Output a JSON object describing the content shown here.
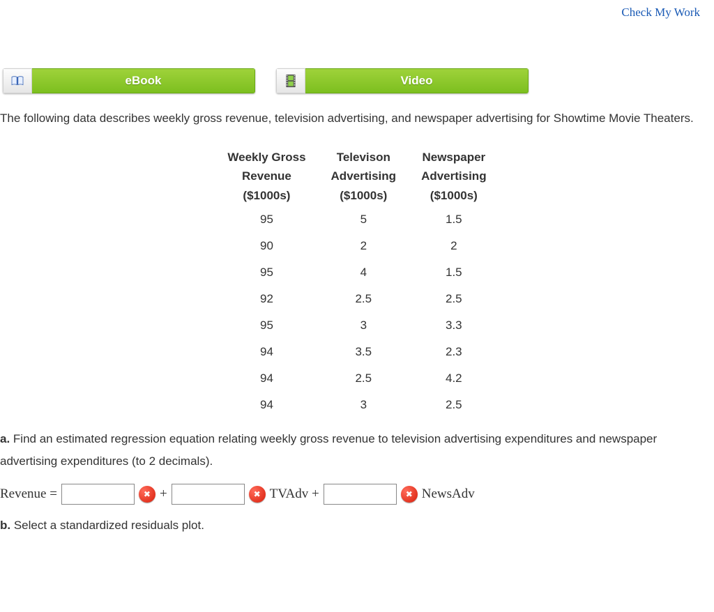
{
  "header": {
    "check_link": "Check My Work"
  },
  "tabs": {
    "ebook_label": "eBook",
    "video_label": "Video"
  },
  "intro_text": "The following data describes weekly gross revenue, television advertising, and newspaper advertising for Showtime Movie Theaters.",
  "table": {
    "col1_l1": "Weekly Gross",
    "col1_l2": "Revenue",
    "col1_l3": "($1000s)",
    "col2_l1": "Televison",
    "col2_l2": "Advertising",
    "col2_l3": "($1000s)",
    "col3_l1": "Newspaper",
    "col3_l2": "Advertising",
    "col3_l3": "($1000s)",
    "rows": [
      {
        "c1": "95",
        "c2": "5",
        "c3": "1.5"
      },
      {
        "c1": "90",
        "c2": "2",
        "c3": "2"
      },
      {
        "c1": "95",
        "c2": "4",
        "c3": "1.5"
      },
      {
        "c1": "92",
        "c2": "2.5",
        "c3": "2.5"
      },
      {
        "c1": "95",
        "c2": "3",
        "c3": "3.3"
      },
      {
        "c1": "94",
        "c2": "3.5",
        "c3": "2.3"
      },
      {
        "c1": "94",
        "c2": "2.5",
        "c3": "4.2"
      },
      {
        "c1": "94",
        "c2": "3",
        "c3": "2.5"
      }
    ]
  },
  "question_a": {
    "letter": "a.",
    "text": " Find an estimated regression equation relating weekly gross revenue to television advertising expenditures and newspaper advertising expenditures (to 2 decimals)."
  },
  "equation": {
    "lhs": "Revenue =",
    "plus": "+",
    "tvadv": "TVAdv +",
    "newsadv": "NewsAdv"
  },
  "question_b": {
    "letter": "b.",
    "text": " Select a standardized residuals plot."
  },
  "colors": {
    "link_blue": "#1a5ab5",
    "tab_green_top": "#9fd23a",
    "tab_green_bottom": "#7cbf1f",
    "badge_red": "#d81e0a"
  }
}
